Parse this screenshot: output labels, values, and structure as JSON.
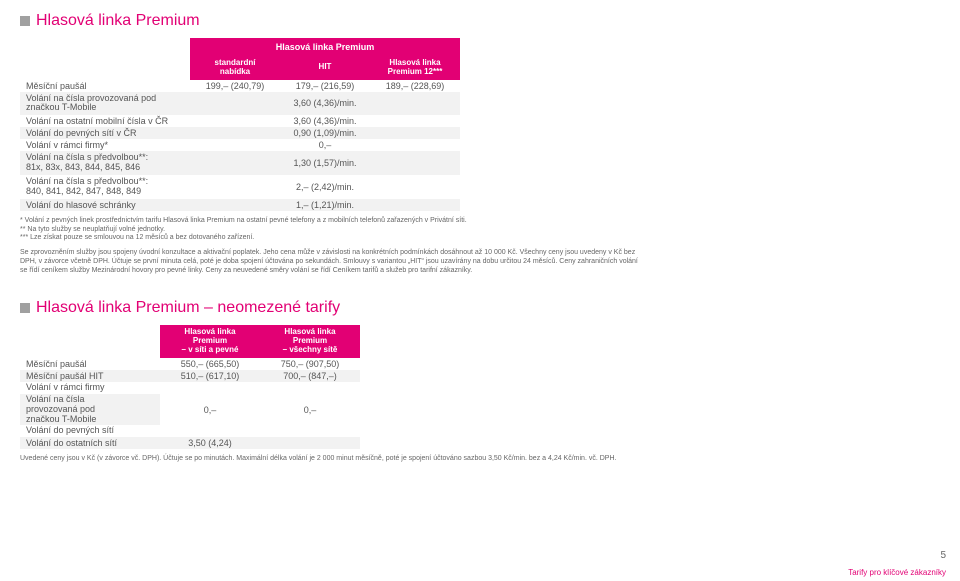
{
  "section1": {
    "title": "Hlasová linka Premium",
    "header": "Hlasová linka Premium",
    "cols": [
      "standardní\nnabídka",
      "HIT",
      "Hlasová linka\nPremium 12***"
    ],
    "rows": [
      {
        "label": "Měsíční paušál",
        "v": [
          "199,– (240,79)",
          "179,– (216,59)",
          "189,– (228,69)"
        ]
      },
      {
        "label": "Volání na čísla provozovaná pod\nznačkou T-Mobile",
        "v": [
          "3,60 (4,36)/min."
        ],
        "span": 3,
        "multi": true
      },
      {
        "label": "Volání na ostatní mobilní čísla v ČR",
        "v": [
          "3,60 (4,36)/min."
        ],
        "span": 3
      },
      {
        "label": "Volání do pevných sítí v ČR",
        "v": [
          "0,90 (1,09)/min."
        ],
        "span": 3
      },
      {
        "label": "Volání v rámci firmy*",
        "v": [
          "0,–"
        ],
        "span": 3
      },
      {
        "label": "Volání na čísla s předvolbou**:\n81x, 83x, 843, 844, 845, 846",
        "v": [
          "1,30 (1,57)/min."
        ],
        "span": 3,
        "multi": true
      },
      {
        "label": "Volání na čísla s předvolbou**:\n840, 841, 842, 847, 848, 849",
        "v": [
          "2,– (2,42)/min."
        ],
        "span": 3,
        "multi": true
      },
      {
        "label": "Volání do hlasové schránky",
        "v": [
          "1,– (1,21)/min."
        ],
        "span": 3
      }
    ],
    "note1": "* Volání z pevných linek prostřednictvím tarifu Hlasová linka Premium na ostatní pevné telefony a z mobilních telefonů zařazených v Privátní síti.\n** Na tyto služby se neuplatňují volné jednotky.\n*** Lze získat pouze se smlouvou na 12 měsíců a bez dotovaného zařízení.",
    "note2": "Se zprovozněním služby jsou spojeny úvodní konzultace a aktivační poplatek. Jeho cena může v závislosti na konkrétních podmínkách dosáhnout až 10 000 Kč. Všechny ceny jsou uvedeny v Kč bez DPH, v závorce včetně DPH. Účtuje se první minuta celá, poté je doba spojení účtována po sekundách. Smlouvy s variantou „HIT“ jsou uzavírány na dobu určitou 24 měsíců. Ceny zahraničních volání se řídí ceníkem služby Mezinárodní hovory pro pevné linky. Ceny za neuvedené směry volání se řídí Ceníkem tarifů a služeb pro tarifní zákazníky."
  },
  "section2": {
    "title": "Hlasová linka Premium – neomezené tarify",
    "cols": [
      "Hlasová linka\nPremium\n– v síti a pevné",
      "Hlasová linka\nPremium\n– všechny sítě"
    ],
    "rows": [
      {
        "label": "Měsíční paušál",
        "v": [
          "550,– (665,50)",
          "750,– (907,50)"
        ]
      },
      {
        "label": "Měsíční paušál HIT",
        "v": [
          "510,– (617,10)",
          "700,– (847,–)"
        ]
      }
    ],
    "groupRows": [
      "Volání v rámci firmy",
      "Volání na čísla\nprovozovaná pod\nznačkou T-Mobile",
      "Volání do pevných sítí"
    ],
    "groupVals": [
      "0,–",
      "0,–"
    ],
    "lastRow": {
      "label": "Volání do ostatních sítí",
      "v": [
        "3,50 (4,24)",
        ""
      ]
    },
    "note": "Uvedené ceny jsou v Kč (v závorce vč. DPH). Účtuje se po minutách. Maximální délka volání je 2 000 minut měsíčně, poté je spojení účtováno sazbou 3,50 Kč/min. bez a 4,24 Kč/min. vč. DPH."
  },
  "pageNum": "5",
  "footerTag": "Tarify pro klíčové zákazníky"
}
